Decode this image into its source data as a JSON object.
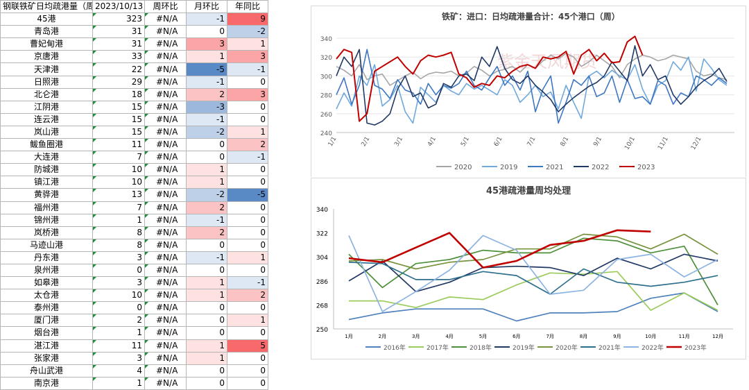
{
  "table": {
    "headers": [
      "钢联铁矿日均疏港量（周）",
      "2023/10/13",
      "周环比",
      "月环比",
      "年同比"
    ],
    "rows": [
      {
        "port": "45港",
        "value": "323",
        "wow": "#N/A",
        "mom": "-1",
        "yoy": "9"
      },
      {
        "port": "青岛港",
        "value": "31",
        "wow": "#N/A",
        "mom": "0",
        "yoy": "-2"
      },
      {
        "port": "曹妃甸港",
        "value": "31",
        "wow": "#N/A",
        "mom": "3",
        "yoy": "1"
      },
      {
        "port": "京唐港",
        "value": "33",
        "wow": "#N/A",
        "mom": "1",
        "yoy": "3"
      },
      {
        "port": "天津港",
        "value": "22",
        "wow": "#N/A",
        "mom": "-5",
        "yoy": "-1"
      },
      {
        "port": "日照港",
        "value": "29",
        "wow": "#N/A",
        "mom": "-1",
        "yoy": "0"
      },
      {
        "port": "北仑港",
        "value": "18",
        "wow": "#N/A",
        "mom": "2",
        "yoy": "3"
      },
      {
        "port": "江阴港",
        "value": "15",
        "wow": "#N/A",
        "mom": "-3",
        "yoy": "0"
      },
      {
        "port": "连云港",
        "value": "15",
        "wow": "#N/A",
        "mom": "-1",
        "yoy": "0"
      },
      {
        "port": "岚山港",
        "value": "15",
        "wow": "#N/A",
        "mom": "-2",
        "yoy": "1"
      },
      {
        "port": "鲅鱼圈港",
        "value": "11",
        "wow": "#N/A",
        "mom": "0",
        "yoy": "2"
      },
      {
        "port": "大连港",
        "value": "7",
        "wow": "#N/A",
        "mom": "0",
        "yoy": "-1"
      },
      {
        "port": "防城港",
        "value": "10",
        "wow": "#N/A",
        "mom": "1",
        "yoy": "0"
      },
      {
        "port": "镇江港",
        "value": "10",
        "wow": "#N/A",
        "mom": "1",
        "yoy": "0"
      },
      {
        "port": "黄骅港",
        "value": "13",
        "wow": "#N/A",
        "mom": "-2",
        "yoy": "-5"
      },
      {
        "port": "福州港",
        "value": "7",
        "wow": "#N/A",
        "mom": "2",
        "yoy": "0"
      },
      {
        "port": "锦州港",
        "value": "1",
        "wow": "#N/A",
        "mom": "-1",
        "yoy": "0"
      },
      {
        "port": "岚桥港",
        "value": "8",
        "wow": "#N/A",
        "mom": "2",
        "yoy": "0"
      },
      {
        "port": "马迹山港",
        "value": "8",
        "wow": "#N/A",
        "mom": "0",
        "yoy": "0"
      },
      {
        "port": "丹东港",
        "value": "3",
        "wow": "#N/A",
        "mom": "-1",
        "yoy": "1"
      },
      {
        "port": "泉州港",
        "value": "0",
        "wow": "#N/A",
        "mom": "0",
        "yoy": "0"
      },
      {
        "port": "如皋港",
        "value": "3",
        "wow": "#N/A",
        "mom": "1",
        "yoy": "-1"
      },
      {
        "port": "太仓港",
        "value": "10",
        "wow": "#N/A",
        "mom": "1",
        "yoy": "2"
      },
      {
        "port": "泰州港",
        "value": "0",
        "wow": "#N/A",
        "mom": "0",
        "yoy": "0"
      },
      {
        "port": "厦门港",
        "value": "2",
        "wow": "#N/A",
        "mom": "0",
        "yoy": "1"
      },
      {
        "port": "烟台港",
        "value": "1",
        "wow": "#N/A",
        "mom": "0",
        "yoy": "0"
      },
      {
        "port": "湛江港",
        "value": "11",
        "wow": "#N/A",
        "mom": "1",
        "yoy": "5"
      },
      {
        "port": "张家港",
        "value": "3",
        "wow": "#N/A",
        "mom": "1",
        "yoy": "0"
      },
      {
        "port": "舟山武港",
        "value": "4",
        "wow": "#N/A",
        "mom": "0",
        "yoy": "0"
      },
      {
        "port": "南京港",
        "value": "1",
        "wow": "#N/A",
        "mom": "0",
        "yoy": "0"
      }
    ]
  },
  "colors": {
    "pos_strong": "#f8696b",
    "neg_strong": "#5a8ac6"
  },
  "chart_data": [
    {
      "type": "line",
      "title": "铁矿：进口：日均疏港量合计：45个港口（周）",
      "x_tick_labels": [
        "1/1",
        "2/1",
        "3/1",
        "4/1",
        "5/1",
        "6/1",
        "7/1",
        "8/1",
        "9/1",
        "10/1",
        "11/1",
        "12/1"
      ],
      "ylim": [
        240,
        340
      ],
      "y_ticks": [
        240,
        260,
        280,
        300,
        320,
        340
      ],
      "x_unit": "week",
      "legend_position": "bottom",
      "watermark": "紫金天风期货",
      "series": [
        {
          "name": "2020",
          "color": "#a6a6a6",
          "x": [
            0,
            1,
            2,
            3,
            4,
            5,
            6,
            7,
            8,
            9,
            10,
            11,
            12,
            13,
            14,
            15,
            16,
            17,
            18,
            19,
            20,
            21,
            22,
            23,
            24,
            25,
            26,
            27,
            28,
            29,
            30,
            31,
            32,
            33,
            34,
            35,
            36,
            37,
            38,
            39,
            40,
            41,
            42,
            43,
            44,
            45,
            46,
            47,
            48,
            49,
            50,
            51
          ],
          "y": [
            310,
            306,
            300,
            312,
            296,
            300,
            302,
            290,
            295,
            300,
            304,
            297,
            302,
            304,
            303,
            305,
            300,
            303,
            310,
            306,
            300,
            305,
            307,
            310,
            304,
            312,
            308,
            316,
            322,
            318,
            324,
            320,
            310,
            315,
            322,
            316,
            310,
            298,
            312,
            318,
            322,
            320,
            316,
            318,
            322,
            320,
            318,
            305,
            300,
            302,
            298,
            296
          ]
        },
        {
          "name": "2019",
          "color": "#6fa8dc",
          "x": [
            0,
            1,
            2,
            3,
            4,
            5,
            6,
            7,
            8,
            9,
            10,
            11,
            12,
            13,
            14,
            15,
            16,
            17,
            18,
            19,
            20,
            21,
            22,
            23,
            24,
            25,
            26,
            27,
            28,
            29,
            30,
            31,
            32,
            33,
            34,
            35,
            36,
            37,
            38,
            39,
            40,
            41,
            42,
            43,
            44,
            45,
            46,
            47,
            48,
            49,
            50,
            51
          ],
          "y": [
            265,
            282,
            268,
            300,
            290,
            312,
            268,
            275,
            290,
            262,
            250,
            288,
            280,
            272,
            290,
            284,
            280,
            292,
            286,
            290,
            285,
            280,
            296,
            290,
            272,
            280,
            290,
            278,
            283,
            265,
            290,
            272,
            255,
            300,
            305,
            298,
            306,
            300,
            296,
            312,
            286,
            270,
            290,
            295,
            315,
            306,
            320,
            284,
            318,
            308,
            296,
            290
          ]
        },
        {
          "name": "2021",
          "color": "#3d76c2",
          "x": [
            0,
            1,
            2,
            3,
            4,
            5,
            6,
            7,
            8,
            9,
            10,
            11,
            12,
            13,
            14,
            15,
            16,
            17,
            18,
            19,
            20,
            21,
            22,
            23,
            24,
            25,
            26,
            27,
            28,
            29,
            30,
            31,
            32,
            33,
            34,
            35,
            36,
            37,
            38,
            39,
            40,
            41,
            42,
            43,
            44,
            45,
            46,
            47,
            48,
            49,
            50,
            51
          ],
          "y": [
            280,
            298,
            270,
            290,
            328,
            290,
            286,
            276,
            296,
            285,
            282,
            270,
            292,
            280,
            290,
            287,
            292,
            305,
            290,
            285,
            298,
            310,
            290,
            300,
            285,
            305,
            262,
            286,
            300,
            250,
            272,
            296,
            290,
            300,
            278,
            282,
            300,
            272,
            296,
            276,
            278,
            270,
            295,
            290,
            270,
            282,
            278,
            300,
            296,
            290,
            298,
            292
          ]
        },
        {
          "name": "2022",
          "color": "#1f3864",
          "x": [
            0,
            1,
            2,
            3,
            4,
            5,
            6,
            7,
            8,
            9,
            10,
            11,
            12,
            13,
            14,
            15,
            16,
            17,
            18,
            19,
            20,
            21,
            22,
            23,
            24,
            25,
            26,
            27,
            28,
            29,
            30,
            31,
            32,
            33,
            34,
            35,
            36,
            37,
            38,
            39,
            40,
            41,
            42,
            43,
            44,
            45,
            46,
            47,
            48,
            49,
            50,
            51
          ],
          "y": [
            300,
            320,
            310,
            328,
            250,
            248,
            252,
            260,
            286,
            300,
            278,
            282,
            266,
            270,
            292,
            288,
            300,
            302,
            295,
            320,
            310,
            331,
            308,
            296,
            292,
            300,
            290,
            283,
            275,
            262,
            270,
            277,
            283,
            289,
            293,
            300,
            315,
            305,
            295,
            332,
            300,
            312,
            296,
            300,
            280,
            270,
            278,
            288,
            295,
            300,
            308,
            294
          ]
        },
        {
          "name": "2023",
          "color": "#c00000",
          "x": [
            0,
            1,
            2,
            3,
            4,
            5,
            6,
            7,
            8,
            9,
            10,
            11,
            12,
            13,
            14,
            15,
            16,
            17,
            18,
            19,
            20,
            21,
            22,
            23,
            24,
            25,
            26,
            27,
            28,
            29,
            30,
            31,
            32,
            33,
            34,
            35,
            36,
            37,
            38,
            39,
            40
          ],
          "y": [
            318,
            328,
            325,
            252,
            260,
            305,
            310,
            315,
            320,
            310,
            302,
            316,
            322,
            320,
            322,
            325,
            302,
            298,
            288,
            292,
            290,
            300,
            298,
            305,
            310,
            312,
            308,
            320,
            318,
            320,
            326,
            302,
            322,
            328,
            316,
            324,
            314,
            315,
            336,
            342,
            322
          ]
        }
      ]
    },
    {
      "type": "line",
      "title": "45港疏港量周均处理",
      "categories": [
        "1月",
        "2月",
        "3月",
        "4月",
        "5月",
        "6月",
        "7月",
        "8月",
        "9月",
        "10月",
        "11月",
        "12月"
      ],
      "ylim": [
        250,
        340
      ],
      "y_ticks": [
        250,
        268,
        286,
        304,
        322,
        340
      ],
      "legend_position": "bottom",
      "series": [
        {
          "name": "2016年",
          "color": "#4f81bd",
          "values": [
            257,
            262,
            265,
            265,
            265,
            256,
            262,
            262,
            263,
            273,
            277,
            263
          ]
        },
        {
          "name": "2017年",
          "color": "#9bcb5a",
          "values": [
            271,
            271,
            266,
            274,
            272,
            283,
            292,
            291,
            293,
            264,
            277,
            264
          ]
        },
        {
          "name": "2018年",
          "color": "#4e8f3a",
          "values": [
            306,
            281,
            299,
            302,
            309,
            307,
            307,
            318,
            316,
            307,
            312,
            268
          ]
        },
        {
          "name": "2019年",
          "color": "#1f3864",
          "values": [
            286,
            301,
            278,
            285,
            296,
            297,
            296,
            290,
            303,
            295,
            306,
            301
          ]
        },
        {
          "name": "2020年",
          "color": "#77933c",
          "values": [
            301,
            302,
            295,
            300,
            302,
            310,
            310,
            321,
            319,
            310,
            321,
            306
          ]
        },
        {
          "name": "2021年",
          "color": "#2e6f8e",
          "values": [
            300,
            299,
            287,
            287,
            293,
            290,
            276,
            295,
            285,
            282,
            285,
            290
          ]
        },
        {
          "name": "2022年",
          "color": "#8db3e2",
          "values": [
            320,
            263,
            278,
            294,
            320,
            309,
            276,
            279,
            302,
            306,
            289,
            302
          ]
        },
        {
          "name": "2023年",
          "color": "#c00000",
          "values": [
            303,
            300,
            311,
            322,
            296,
            301,
            313,
            316,
            324,
            323,
            null,
            null
          ]
        }
      ]
    }
  ]
}
